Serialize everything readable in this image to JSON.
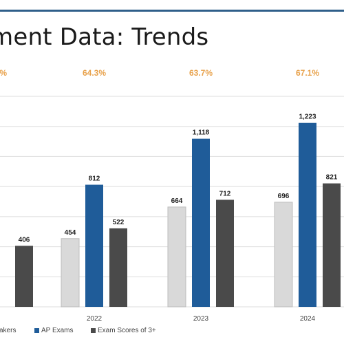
{
  "page": {
    "title": "ment Data: Trends"
  },
  "colors": {
    "rule": "#2f5f8a",
    "takers": "#d9d9d9",
    "exams": "#1f5c99",
    "scores": "#4a4a4a",
    "pct": "#e8a24c",
    "grid": "#dedede"
  },
  "legend": {
    "items": [
      {
        "label": "Takers",
        "color": "#d9d9d9"
      },
      {
        "label": "AP Exams",
        "color": "#1f5c99"
      },
      {
        "label": "Exam Scores of 3+",
        "color": "#4a4a4a"
      }
    ]
  },
  "chart_data": {
    "type": "bar",
    "categories": [
      "",
      "2022",
      "2023",
      "2024"
    ],
    "series": [
      {
        "name": "Takers",
        "values": [
          null,
          454,
          664,
          696
        ],
        "labels": [
          null,
          "454",
          "664",
          "696"
        ]
      },
      {
        "name": "AP Exams",
        "values": [
          null,
          812,
          1118,
          1223
        ],
        "labels": [
          null,
          "812",
          "1,118",
          "1,223"
        ]
      },
      {
        "name": "Exam Scores of 3+",
        "values": [
          406,
          522,
          712,
          821
        ],
        "labels": [
          "406",
          "522",
          "712",
          "821"
        ]
      }
    ],
    "percent_labels": [
      "%",
      "64.3%",
      "63.7%",
      "67.1%"
    ],
    "title": "ment Data: Trends",
    "xlabel": "",
    "ylabel": "",
    "ylim": [
      0,
      1400
    ],
    "grid": true,
    "legend_position": "bottom"
  }
}
